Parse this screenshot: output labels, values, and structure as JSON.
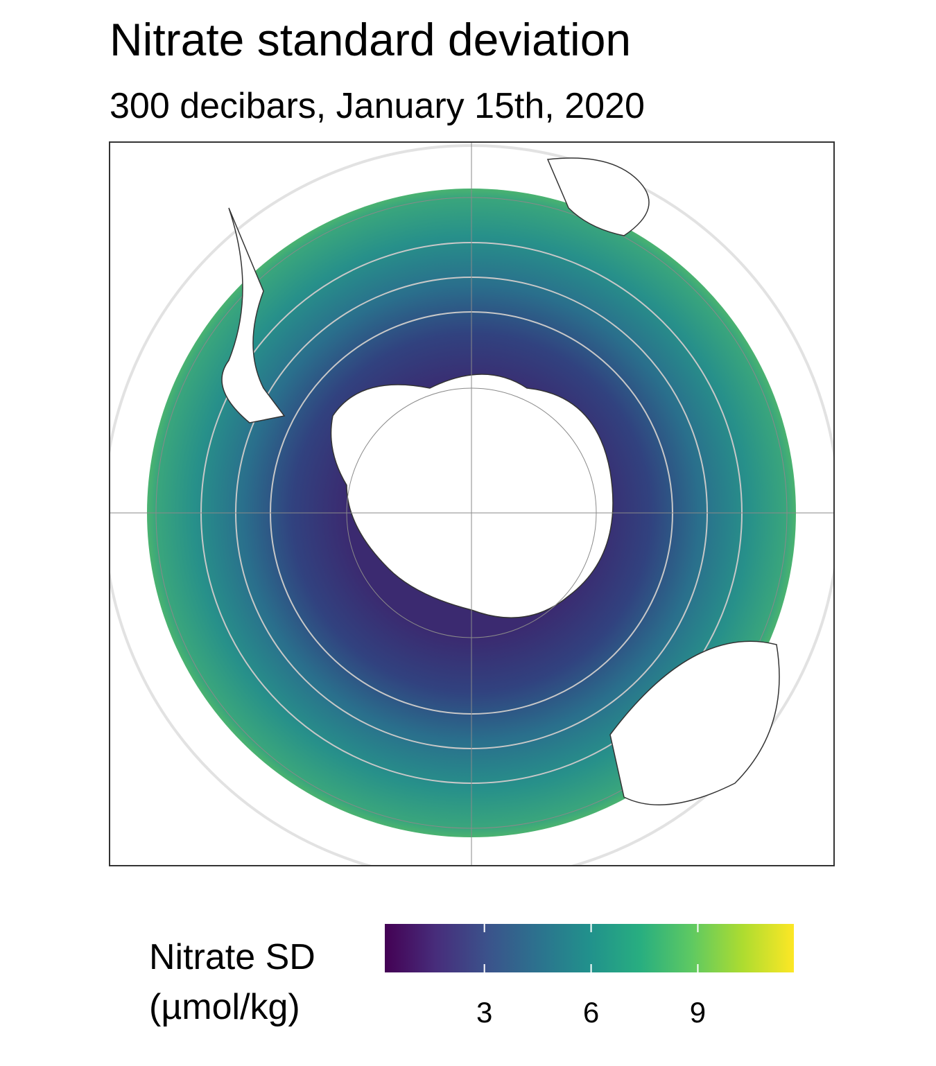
{
  "title": "Nitrate standard deviation",
  "subtitle": "300 decibars, January 15th, 2020",
  "legend": {
    "title": [
      "Nitrate SD",
      "(µmol/kg)"
    ],
    "colors": [
      "#440154",
      "#472d7b",
      "#3b528b",
      "#2c728e",
      "#21918c",
      "#28ae80",
      "#5ec962",
      "#addc30",
      "#fde725"
    ],
    "lim": [
      0.2,
      11.7
    ],
    "ticks": [
      3,
      6,
      9
    ]
  }
}
